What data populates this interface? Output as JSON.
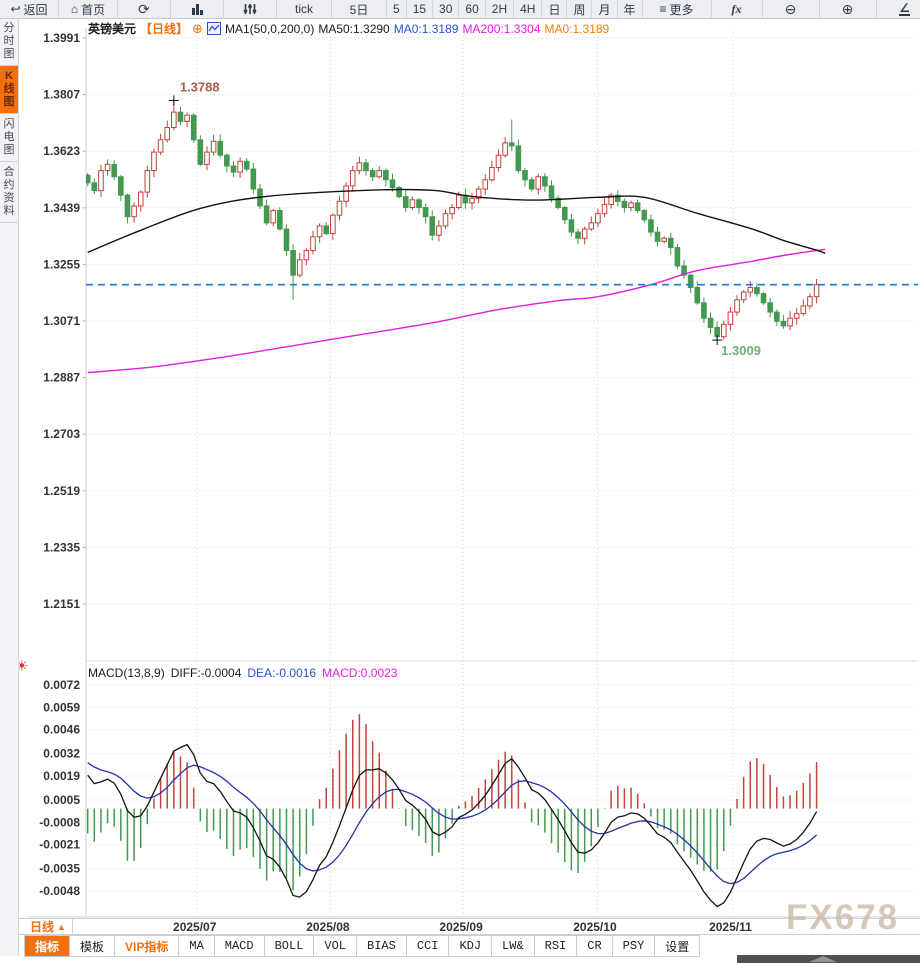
{
  "window": {
    "watermark": "FX678"
  },
  "toolbar": {
    "items": [
      {
        "id": "back",
        "icon": "↩",
        "label": "返回"
      },
      {
        "id": "home",
        "icon": "⌂",
        "label": "首页"
      },
      {
        "id": "refresh",
        "icon": "⟳",
        "label": ""
      },
      {
        "id": "chart-type",
        "label": ""
      },
      {
        "id": "volume",
        "label": ""
      },
      {
        "id": "tick",
        "label": "tick"
      },
      {
        "id": "5d",
        "label": "5日"
      },
      {
        "id": "m5",
        "label": "5"
      },
      {
        "id": "m15",
        "label": "15"
      },
      {
        "id": "m30",
        "label": "30"
      },
      {
        "id": "m60",
        "label": "60"
      },
      {
        "id": "h2",
        "label": "2H"
      },
      {
        "id": "h4",
        "label": "4H"
      },
      {
        "id": "day",
        "label": "日"
      },
      {
        "id": "week",
        "label": "周"
      },
      {
        "id": "month",
        "label": "月"
      },
      {
        "id": "year",
        "label": "年"
      },
      {
        "id": "more",
        "icon": "≡",
        "label": "更多"
      },
      {
        "id": "fx",
        "label": "fx"
      },
      {
        "id": "zoom-out",
        "icon": "⊖",
        "label": ""
      },
      {
        "id": "zoom-in",
        "icon": "⊕",
        "label": ""
      },
      {
        "id": "draw-line",
        "icon": "∠",
        "label": ""
      },
      {
        "id": "draw-angle",
        "icon": "◿",
        "label": ""
      }
    ]
  },
  "sidebar": {
    "tabs": [
      {
        "label": "分时图",
        "active": false
      },
      {
        "label": "K线图",
        "active": true
      },
      {
        "label": "闪电图",
        "active": false
      },
      {
        "label": "合约资料",
        "active": false
      }
    ]
  },
  "main_legend": {
    "symbol": "英镑美元",
    "period": "【日线】",
    "plus": "⊕",
    "ma_formula": "MA1(50,0,200,0)",
    "ma50": "MA50:1.3290",
    "ma0_blue": "MA0:1.3189",
    "ma200": "MA200:1.3304",
    "ma0_orange": "MA0:1.3189"
  },
  "macd_legend": {
    "formula": "MACD(13,8,9)",
    "diff": "DIFF:-0.0004",
    "dea": "DEA:-0.0016",
    "macd": "MACD:0.0023"
  },
  "period_selector": {
    "label": "日线",
    "arrow": "▲"
  },
  "bottom_toolbar": {
    "items": [
      {
        "label": "指标",
        "state": "active"
      },
      {
        "label": "模板",
        "state": "normal"
      },
      {
        "label": "VIP指标",
        "state": "vip"
      },
      {
        "label": "MA",
        "state": "normal"
      },
      {
        "label": "MACD",
        "state": "normal"
      },
      {
        "label": "BOLL",
        "state": "normal"
      },
      {
        "label": "VOL",
        "state": "normal"
      },
      {
        "label": "BIAS",
        "state": "normal"
      },
      {
        "label": "CCI",
        "state": "normal"
      },
      {
        "label": "KDJ",
        "state": "normal"
      },
      {
        "label": "LW&",
        "state": "normal"
      },
      {
        "label": "RSI",
        "state": "normal"
      },
      {
        "label": "CR",
        "state": "normal"
      },
      {
        "label": "PSY",
        "state": "normal"
      },
      {
        "label": "设置",
        "state": "normal"
      }
    ]
  },
  "chart_data": {
    "type": "candlestick",
    "symbol": "英镑美元",
    "period": "日线",
    "y_ticks": [
      1.3991,
      1.3807,
      1.3623,
      1.3439,
      1.3255,
      1.3071,
      1.2887,
      1.2703,
      1.2519,
      1.2335,
      1.2151
    ],
    "x_ticks": [
      {
        "label": "2025/07",
        "i": 16.5
      },
      {
        "label": "2025/08",
        "i": 36.6
      },
      {
        "label": "2025/09",
        "i": 56.7
      },
      {
        "label": "2025/10",
        "i": 76.9
      },
      {
        "label": "2025/11",
        "i": 97.4
      }
    ],
    "last_price": 1.3189,
    "annotations": [
      {
        "text": "1.3788",
        "price": 1.3788,
        "i": 13,
        "color": "#b5574c",
        "pos": "above"
      },
      {
        "text": "1.3009",
        "price": 1.3009,
        "i": 95,
        "color": "#74ad7c",
        "pos": "below"
      }
    ],
    "open_first": 1.3545,
    "closes": [
      1.352,
      1.3495,
      1.356,
      1.358,
      1.354,
      1.348,
      1.341,
      1.3445,
      1.349,
      1.356,
      1.362,
      1.366,
      1.37,
      1.375,
      1.372,
      1.374,
      1.366,
      1.358,
      1.362,
      1.3655,
      1.361,
      1.3575,
      1.3555,
      1.359,
      1.3565,
      1.35,
      1.3445,
      1.339,
      1.343,
      1.337,
      1.33,
      1.322,
      1.327,
      1.33,
      1.3345,
      1.338,
      1.3355,
      1.3415,
      1.346,
      1.351,
      1.356,
      1.3585,
      1.356,
      1.354,
      1.356,
      1.353,
      1.3505,
      1.3475,
      1.344,
      1.3465,
      1.344,
      1.341,
      1.335,
      1.338,
      1.342,
      1.344,
      1.348,
      1.3455,
      1.347,
      1.35,
      1.353,
      1.357,
      1.361,
      1.365,
      1.364,
      1.356,
      1.353,
      1.35,
      1.354,
      1.351,
      1.347,
      1.344,
      1.34,
      1.336,
      1.334,
      1.337,
      1.339,
      1.342,
      1.345,
      1.348,
      1.346,
      1.344,
      1.3455,
      1.343,
      1.34,
      1.336,
      1.333,
      1.334,
      1.331,
      1.325,
      1.322,
      1.318,
      1.313,
      1.308,
      1.305,
      1.302,
      1.306,
      1.31,
      1.314,
      1.3165,
      1.318,
      1.316,
      1.313,
      1.31,
      1.307,
      1.3055,
      1.308,
      1.3095,
      1.312,
      1.315,
      1.3189
    ],
    "wick_overrides": {
      "13": {
        "high": 1.3788
      },
      "31": {
        "low": 1.314
      },
      "64": {
        "high": 1.3726
      },
      "95": {
        "low": 1.3009
      }
    },
    "ma50": {
      "name": "MA50",
      "color": "#141414",
      "points": [
        [
          0,
          1.3294
        ],
        [
          8,
          1.3366
        ],
        [
          17,
          1.3437
        ],
        [
          27,
          1.3476
        ],
        [
          42,
          1.3496
        ],
        [
          52,
          1.3496
        ],
        [
          58,
          1.3476
        ],
        [
          67,
          1.3464
        ],
        [
          77,
          1.3473
        ],
        [
          84,
          1.3473
        ],
        [
          92,
          1.3421
        ],
        [
          100,
          1.3372
        ],
        [
          105,
          1.3333
        ],
        [
          110,
          1.3301
        ],
        [
          111.3,
          1.3291
        ]
      ]
    },
    "ma200": {
      "name": "MA200",
      "color": "#e21ee2",
      "points": [
        [
          0,
          1.2903
        ],
        [
          10,
          1.2922
        ],
        [
          20,
          1.2952
        ],
        [
          30,
          1.2987
        ],
        [
          41,
          1.3026
        ],
        [
          52,
          1.3065
        ],
        [
          62,
          1.3108
        ],
        [
          71,
          1.3137
        ],
        [
          77,
          1.315
        ],
        [
          85,
          1.3189
        ],
        [
          92,
          1.3235
        ],
        [
          100,
          1.3264
        ],
        [
          105,
          1.3284
        ],
        [
          111.3,
          1.3304
        ]
      ]
    },
    "macd": {
      "params": [
        13,
        8,
        9
      ],
      "y_ticks": [
        0.0072,
        0.0059,
        0.0046,
        0.0032,
        0.0019,
        0.0005,
        -0.0008,
        -0.0021,
        -0.0035,
        -0.0048
      ],
      "diff_display": -0.0004,
      "dea_display": -0.0016,
      "hist_display": 0.0023,
      "warmup": [
        1.325,
        1.328,
        1.331,
        1.334,
        1.337,
        1.34,
        1.3425,
        1.345,
        1.347,
        1.349,
        1.3505,
        1.3515,
        1.3525,
        1.353,
        1.3535,
        1.3538,
        1.354,
        1.354,
        1.3538,
        1.3536
      ]
    },
    "colors": {
      "up": "#c0443c",
      "down": "#43994f",
      "last_price_line": "#1779d8",
      "grid": "#d8d8d8",
      "diff_line": "#141414",
      "dea_line": "#2433a8",
      "accent_orange": "#f2700f"
    }
  }
}
